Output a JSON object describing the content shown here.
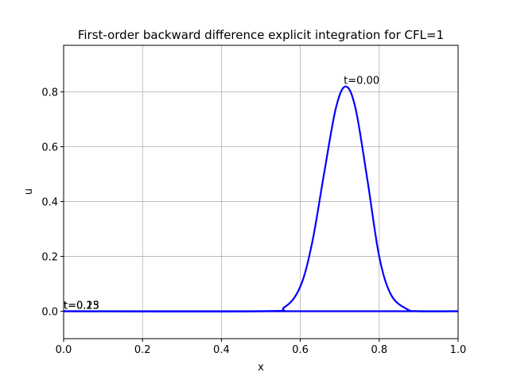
{
  "chart_data": {
    "type": "line",
    "title": "First-order backward difference explicit integration for  CFL=1",
    "xlabel": "x",
    "ylabel": "u",
    "xlim": [
      0.0,
      1.0
    ],
    "ylim": [
      -0.1,
      0.97
    ],
    "xticks": [
      0.0,
      0.2,
      0.4,
      0.6,
      0.8,
      1.0
    ],
    "xtick_labels": [
      "0.0",
      "0.2",
      "0.4",
      "0.6",
      "0.8",
      "1.0"
    ],
    "yticks": [
      0.0,
      0.2,
      0.4,
      0.6,
      0.8
    ],
    "ytick_labels": [
      "0.0",
      "0.2",
      "0.4",
      "0.6",
      "0.8"
    ],
    "grid": true,
    "line_color": "#0000ff",
    "series": [
      {
        "x": [
          0.0,
          0.5,
          0.56,
          0.6,
          0.63,
          0.66,
          0.69,
          0.715,
          0.74,
          0.77,
          0.8,
          0.83,
          0.87,
          0.9,
          1.0
        ],
        "values": [
          0.0,
          0.0,
          0.015,
          0.09,
          0.25,
          0.5,
          0.74,
          0.82,
          0.74,
          0.48,
          0.2,
          0.06,
          0.008,
          0.0,
          0.0
        ]
      },
      {
        "x": [
          0.0,
          1.0
        ],
        "values": [
          0.0,
          0.0
        ]
      }
    ],
    "annotations": [
      {
        "text": "t=0.00",
        "x": 0.71,
        "y": 0.82
      },
      {
        "text": "t=0.25",
        "x": 0.0,
        "y": 0.0
      },
      {
        "text": "t=0.13",
        "x": 0.0,
        "y": 0.0
      }
    ]
  }
}
